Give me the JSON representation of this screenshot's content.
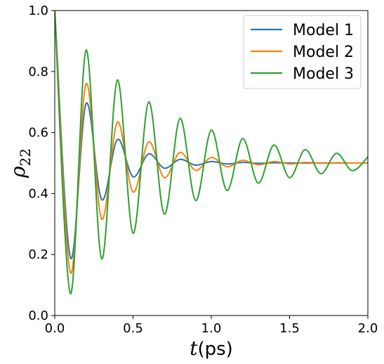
{
  "chart_data": {
    "type": "line",
    "title": "",
    "xlabel": {
      "symbol": "t",
      "unit": "(ps)"
    },
    "ylabel": {
      "symbol": "ρ",
      "subscript": "22"
    },
    "xlim": [
      0.0,
      2.0
    ],
    "ylim": [
      0.0,
      1.0
    ],
    "xticks": [
      0.0,
      0.5,
      1.0,
      1.5,
      2.0
    ],
    "xtick_labels": [
      "0.0",
      "0.5",
      "1.0",
      "1.5",
      "2.0"
    ],
    "yticks": [
      0.0,
      0.2,
      0.4,
      0.6,
      0.8,
      1.0
    ],
    "ytick_labels": [
      "0.0",
      "0.2",
      "0.4",
      "0.6",
      "0.8",
      "1.0"
    ],
    "grid": false,
    "legend_position": "top-right",
    "series": [
      {
        "name": "Model 1",
        "color": "#1f77b4",
        "x": [
          0.0,
          0.1,
          0.2,
          0.3,
          0.4,
          0.5,
          0.6,
          0.7,
          0.8,
          0.9,
          1.0,
          1.1,
          1.2,
          1.3,
          1.4,
          1.5,
          1.6,
          1.7,
          1.8,
          1.9,
          2.0
        ],
        "y": [
          1.0,
          0.19,
          0.695,
          0.38,
          0.577,
          0.455,
          0.53,
          0.483,
          0.512,
          0.493,
          0.505,
          0.497,
          0.502,
          0.499,
          0.501,
          0.5,
          0.5,
          0.5,
          0.5,
          0.5,
          0.5
        ]
      },
      {
        "name": "Model 2",
        "color": "#ff7f0e",
        "x": [
          0.0,
          0.1,
          0.2,
          0.3,
          0.4,
          0.5,
          0.6,
          0.7,
          0.8,
          0.9,
          1.0,
          1.1,
          1.2,
          1.3,
          1.4,
          1.5,
          1.6,
          1.7,
          1.8,
          1.9,
          2.0
        ],
        "y": [
          1.0,
          0.14,
          0.76,
          0.316,
          0.634,
          0.405,
          0.569,
          0.452,
          0.535,
          0.476,
          0.518,
          0.488,
          0.509,
          0.494,
          0.505,
          0.497,
          0.502,
          0.499,
          0.501,
          0.5,
          0.5
        ]
      },
      {
        "name": "Model 3",
        "color": "#2ca02c",
        "x": [
          0.0,
          0.1,
          0.2,
          0.3,
          0.4,
          0.5,
          0.6,
          0.7,
          0.8,
          0.9,
          1.0,
          1.1,
          1.2,
          1.3,
          1.4,
          1.5,
          1.6,
          1.7,
          1.8,
          1.9,
          2.0
        ],
        "y": [
          1.0,
          0.072,
          0.87,
          0.186,
          0.772,
          0.27,
          0.7,
          0.332,
          0.646,
          0.377,
          0.608,
          0.41,
          0.58,
          0.434,
          0.559,
          0.452,
          0.544,
          0.465,
          0.532,
          0.475,
          0.52
        ]
      }
    ]
  }
}
